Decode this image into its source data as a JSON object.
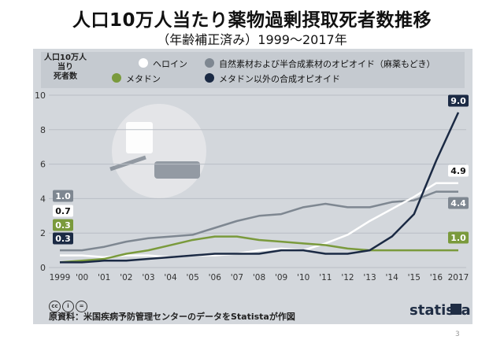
{
  "title": "人口10万人当たり薬物過剰摂取死者数推移",
  "subtitle": "（年齢補正済み）1999〜2017年",
  "source": "原資料：米国疾病予防管理センターのデータをStatistaが作図",
  "brand": "statista",
  "page_number": "3",
  "cc_icons": [
    "cc",
    "i",
    "="
  ],
  "chart_data": {
    "type": "line",
    "ylabel": "人口10万人\n当り\n死者数",
    "ylim": [
      0,
      10
    ],
    "yticks": [
      "0",
      "2",
      "4",
      "6",
      "8",
      "10"
    ],
    "categories": [
      "1999",
      "'00",
      "'01",
      "'02",
      "'03",
      "'04",
      "'05",
      "'06",
      "'07",
      "'08",
      "'09",
      "'10",
      "'11",
      "'12",
      "'13",
      "'14",
      "'15",
      "'16",
      "2017"
    ],
    "series": [
      {
        "name": "自然素材および半合成素材のオピオイド（麻薬もどき）",
        "color": "#7e8791",
        "values": [
          1.0,
          1.0,
          1.2,
          1.5,
          1.7,
          1.8,
          1.9,
          2.3,
          2.7,
          3.0,
          3.1,
          3.5,
          3.7,
          3.5,
          3.5,
          3.8,
          3.9,
          4.4,
          4.4
        ],
        "start_label": "1.0",
        "end_label": "4.4"
      },
      {
        "name": "ヘロイン",
        "color": "#ffffff",
        "values": [
          0.7,
          0.7,
          0.6,
          0.7,
          0.7,
          0.6,
          0.7,
          0.7,
          0.8,
          1.0,
          1.1,
          1.0,
          1.4,
          1.9,
          2.7,
          3.4,
          4.1,
          4.9,
          4.9
        ],
        "start_label": "0.7",
        "end_label": "4.9"
      },
      {
        "name": "メタドン",
        "color": "#7a9a3c",
        "values": [
          0.3,
          0.4,
          0.5,
          0.8,
          1.0,
          1.3,
          1.6,
          1.8,
          1.8,
          1.6,
          1.5,
          1.4,
          1.3,
          1.1,
          1.0,
          1.0,
          1.0,
          1.0,
          1.0
        ],
        "start_label": "0.3",
        "end_label": "1.0"
      },
      {
        "name": "メタドン以外の合成オピオイド",
        "color": "#1b2a44",
        "values": [
          0.3,
          0.3,
          0.4,
          0.4,
          0.5,
          0.6,
          0.7,
          0.8,
          0.8,
          0.8,
          1.0,
          1.0,
          0.8,
          0.8,
          1.0,
          1.8,
          3.1,
          6.2,
          9.0
        ],
        "start_label": "0.3",
        "end_label": "9.0"
      }
    ]
  }
}
